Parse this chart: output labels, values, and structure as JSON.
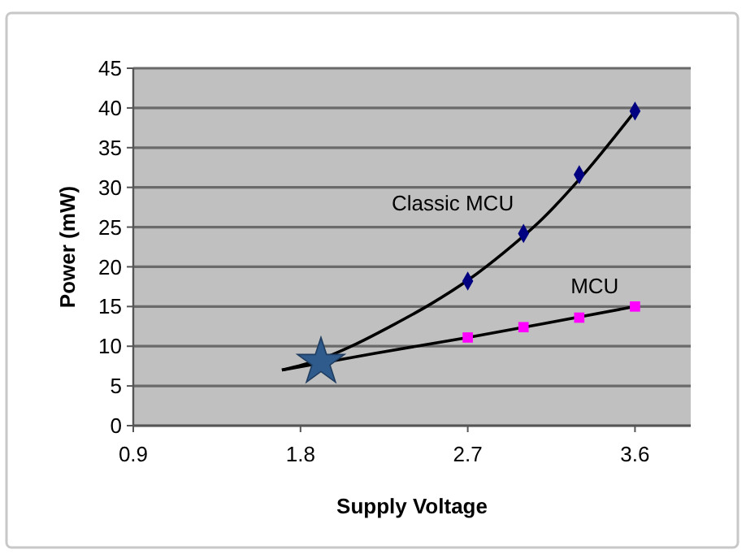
{
  "chart_data": {
    "type": "scatter",
    "xlabel": "Supply Voltage",
    "ylabel": "Power (mW)",
    "xlim": [
      0.9,
      3.9
    ],
    "xticks": [
      0.9,
      1.8,
      2.7,
      3.6
    ],
    "ylim": [
      0,
      45
    ],
    "yticks": [
      0,
      5,
      10,
      15,
      20,
      25,
      30,
      35,
      40,
      45
    ],
    "grid": "y",
    "series": [
      {
        "type": "line",
        "color": "#000000",
        "marker": "none",
        "x": [
          1.7,
          1.9,
          2.1,
          2.3,
          2.5,
          2.7,
          2.9,
          3.1,
          3.3,
          3.6
        ],
        "values": [
          7.0,
          8.3,
          10.3,
          12.7,
          15.3,
          18.3,
          21.9,
          26.0,
          31.0,
          39.6
        ]
      },
      {
        "type": "line",
        "color": "#000000",
        "marker": "none",
        "x": [
          1.7,
          2.2,
          2.7,
          3.1,
          3.6
        ],
        "values": [
          7.0,
          9.1,
          11.1,
          12.8,
          15.0
        ]
      },
      {
        "type": "scatter",
        "name": "Classic MCU",
        "color": "#000080",
        "marker": "diamond",
        "x": [
          2.7,
          3.0,
          3.3,
          3.6
        ],
        "values": [
          18.2,
          24.2,
          31.6,
          39.6
        ]
      },
      {
        "type": "scatter",
        "name": "MCU",
        "color": "#ff00ff",
        "marker": "square",
        "x": [
          2.7,
          3.0,
          3.3,
          3.6
        ],
        "values": [
          11.1,
          12.4,
          13.6,
          15.0
        ]
      },
      {
        "type": "scatter",
        "color": "#2f5b8c",
        "marker": "star",
        "x": [
          1.91
        ],
        "values": [
          8.0
        ]
      }
    ]
  }
}
